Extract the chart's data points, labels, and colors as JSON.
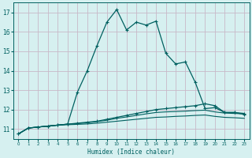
{
  "xlabel": "Humidex (Indice chaleur)",
  "bg_color": "#d6f0f0",
  "grid_color": "#c8b8c8",
  "line_color": "#006060",
  "xlim": [
    -0.5,
    23.5
  ],
  "ylim": [
    10.5,
    17.5
  ],
  "xticks": [
    0,
    1,
    2,
    3,
    4,
    5,
    6,
    7,
    8,
    9,
    10,
    11,
    12,
    13,
    14,
    15,
    16,
    17,
    18,
    19,
    20,
    21,
    22,
    23
  ],
  "yticks": [
    11,
    12,
    13,
    14,
    15,
    16,
    17
  ],
  "series1_x": [
    0,
    1,
    2,
    3,
    4,
    5,
    6,
    7,
    8,
    9,
    10,
    11,
    12,
    13,
    14,
    15,
    16,
    17,
    18,
    19,
    20,
    21,
    22,
    23
  ],
  "series1_y": [
    10.75,
    11.05,
    11.1,
    11.15,
    11.2,
    11.25,
    12.9,
    14.0,
    15.3,
    16.5,
    17.15,
    16.1,
    16.5,
    16.35,
    16.55,
    14.9,
    14.35,
    14.45,
    13.4,
    12.05,
    12.1,
    11.85,
    11.85,
    11.75
  ],
  "series2_x": [
    0,
    1,
    2,
    3,
    4,
    5,
    6,
    7,
    8,
    9,
    10,
    11,
    12,
    13,
    14,
    15,
    16,
    17,
    18,
    19,
    20,
    21,
    22,
    23
  ],
  "series2_y": [
    10.75,
    11.05,
    11.1,
    11.15,
    11.2,
    11.25,
    11.3,
    11.35,
    11.4,
    11.5,
    11.6,
    11.7,
    11.8,
    11.9,
    12.0,
    12.05,
    12.1,
    12.15,
    12.2,
    12.3,
    12.2,
    11.85,
    11.85,
    11.8
  ],
  "series3_x": [
    0,
    1,
    2,
    3,
    4,
    5,
    6,
    7,
    8,
    9,
    10,
    11,
    12,
    13,
    14,
    15,
    16,
    17,
    18,
    19,
    20,
    21,
    22,
    23
  ],
  "series3_y": [
    10.75,
    11.05,
    11.1,
    11.15,
    11.2,
    11.25,
    11.28,
    11.32,
    11.38,
    11.45,
    11.55,
    11.62,
    11.7,
    11.78,
    11.85,
    11.88,
    11.9,
    11.92,
    11.95,
    11.97,
    11.88,
    11.82,
    11.8,
    11.78
  ],
  "series4_x": [
    0,
    1,
    2,
    3,
    4,
    5,
    6,
    7,
    8,
    9,
    10,
    11,
    12,
    13,
    14,
    15,
    16,
    17,
    18,
    19,
    20,
    21,
    22,
    23
  ],
  "series4_y": [
    10.75,
    11.05,
    11.1,
    11.15,
    11.2,
    11.22,
    11.24,
    11.26,
    11.3,
    11.35,
    11.4,
    11.45,
    11.5,
    11.55,
    11.6,
    11.62,
    11.65,
    11.67,
    11.7,
    11.72,
    11.65,
    11.6,
    11.58,
    11.55
  ]
}
